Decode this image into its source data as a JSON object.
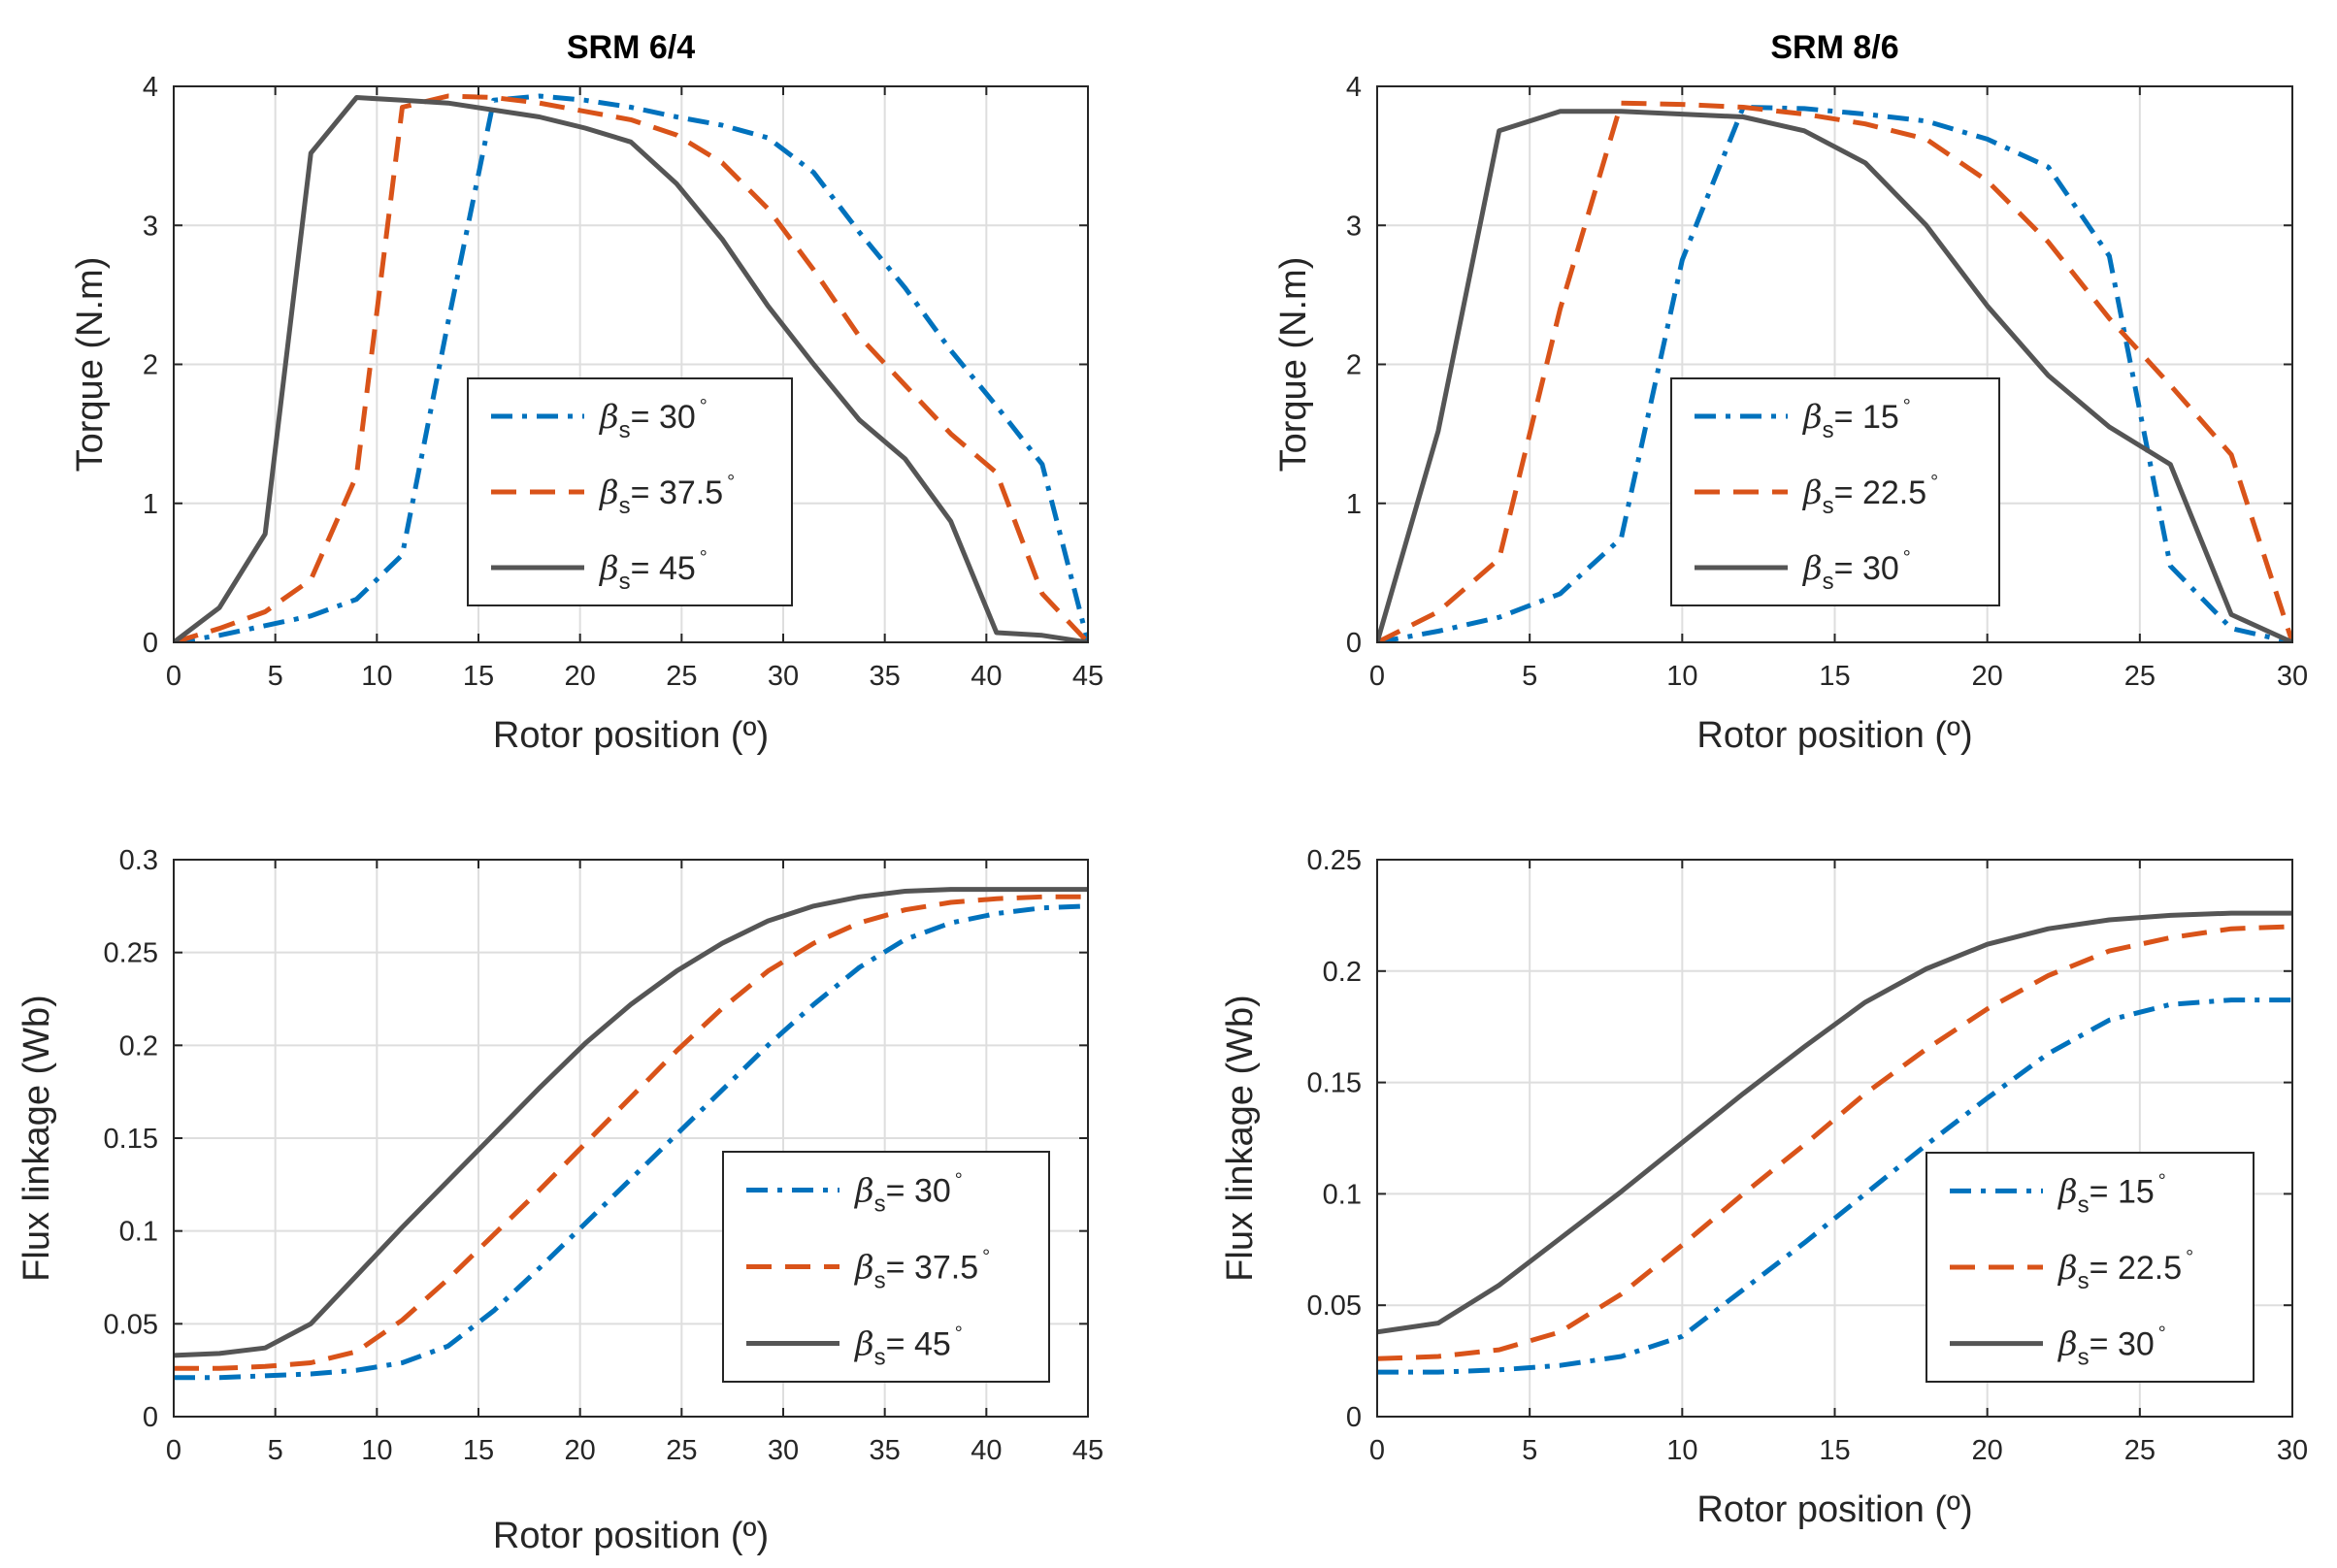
{
  "chart_data": [
    {
      "type": "line",
      "panel": "top-left",
      "title": "SRM 6/4",
      "xlabel": "Rotor position (º)",
      "ylabel": "Torque (N.m)",
      "xlim": [
        0,
        45
      ],
      "ylim": [
        0,
        4
      ],
      "xticks": [
        0,
        5,
        10,
        15,
        20,
        25,
        30,
        35,
        40,
        45
      ],
      "yticks": [
        0,
        1,
        2,
        3,
        4
      ],
      "grid": true,
      "legend_position": "center",
      "series": [
        {
          "name": "βs= 30°",
          "sym": "β",
          "sub": "s",
          "text": "= 30",
          "sup": "°",
          "color": "#0072BD",
          "style": "dashdot",
          "x": [
            0,
            2.25,
            4.5,
            6.75,
            9,
            11.25,
            13.5,
            15.75,
            18,
            20.25,
            22.5,
            24.75,
            27,
            29.25,
            31.5,
            33.75,
            36,
            38.25,
            40.5,
            42.75,
            45
          ],
          "y": [
            0,
            0.05,
            0.12,
            0.19,
            0.31,
            0.63,
            2.3,
            3.9,
            3.93,
            3.9,
            3.85,
            3.78,
            3.72,
            3.63,
            3.38,
            2.95,
            2.55,
            2.1,
            1.7,
            1.28,
            0
          ]
        },
        {
          "name": "βs= 37.5°",
          "sym": "β",
          "sub": "s",
          "text": "= 37.5",
          "sup": "°",
          "color": "#D95319",
          "style": "dashed",
          "x": [
            0,
            2.25,
            4.5,
            6.75,
            9,
            11.25,
            13.5,
            15.75,
            18,
            20.25,
            22.5,
            24.75,
            27,
            29.25,
            31.5,
            33.75,
            36,
            38.25,
            40.5,
            42.75,
            45
          ],
          "y": [
            0,
            0.1,
            0.22,
            0.45,
            1.2,
            3.85,
            3.93,
            3.92,
            3.88,
            3.82,
            3.76,
            3.65,
            3.45,
            3.12,
            2.68,
            2.2,
            1.85,
            1.5,
            1.22,
            0.35,
            0
          ]
        },
        {
          "name": "βs= 45°",
          "sym": "β",
          "sub": "s",
          "text": "= 45",
          "sup": "°",
          "color": "#555555",
          "style": "solid",
          "x": [
            0,
            2.25,
            4.5,
            6.75,
            9,
            11.25,
            13.5,
            15.75,
            18,
            20.25,
            22.5,
            24.75,
            27,
            29.25,
            31.5,
            33.75,
            36,
            38.25,
            40.5,
            42.75,
            45
          ],
          "y": [
            0,
            0.25,
            0.78,
            3.52,
            3.92,
            3.9,
            3.88,
            3.83,
            3.78,
            3.7,
            3.6,
            3.3,
            2.9,
            2.42,
            2.0,
            1.6,
            1.32,
            0.87,
            0.07,
            0.05,
            0
          ]
        }
      ]
    },
    {
      "type": "line",
      "panel": "top-right",
      "title": "SRM 8/6",
      "xlabel": "Rotor position (º)",
      "ylabel": "Torque (N.m)",
      "xlim": [
        0,
        30
      ],
      "ylim": [
        0,
        4
      ],
      "xticks": [
        0,
        5,
        10,
        15,
        20,
        25,
        30
      ],
      "yticks": [
        0,
        1,
        2,
        3,
        4
      ],
      "grid": true,
      "legend_position": "center",
      "series": [
        {
          "name": "βs= 15°",
          "sym": "β",
          "sub": "s",
          "text": "= 15",
          "sup": "°",
          "color": "#0072BD",
          "style": "dashdot",
          "x": [
            0,
            2,
            4,
            6,
            8,
            10,
            12,
            14,
            16,
            18,
            20,
            22,
            24,
            26,
            28,
            30
          ],
          "y": [
            0,
            0.08,
            0.18,
            0.35,
            0.75,
            2.75,
            3.85,
            3.84,
            3.8,
            3.75,
            3.62,
            3.42,
            2.78,
            0.55,
            0.1,
            0
          ]
        },
        {
          "name": "βs= 22.5°",
          "sym": "β",
          "sub": "s",
          "text": "= 22.5",
          "sup": "°",
          "color": "#D95319",
          "style": "dashed",
          "x": [
            0,
            2,
            4,
            6,
            8,
            10,
            12,
            14,
            16,
            18,
            20,
            22,
            24,
            26,
            28,
            30
          ],
          "y": [
            0,
            0.22,
            0.6,
            2.4,
            3.88,
            3.87,
            3.85,
            3.8,
            3.73,
            3.62,
            3.32,
            2.88,
            2.33,
            1.85,
            1.35,
            0
          ]
        },
        {
          "name": "βs= 30°",
          "sym": "β",
          "sub": "s",
          "text": "= 30",
          "sup": "°",
          "color": "#555555",
          "style": "solid",
          "x": [
            0,
            2,
            4,
            6,
            8,
            10,
            12,
            14,
            16,
            18,
            20,
            22,
            24,
            26,
            28,
            30
          ],
          "y": [
            0,
            1.52,
            3.68,
            3.82,
            3.82,
            3.8,
            3.78,
            3.68,
            3.45,
            3.0,
            2.42,
            1.92,
            1.55,
            1.28,
            0.2,
            0
          ]
        }
      ]
    },
    {
      "type": "line",
      "panel": "bottom-left",
      "title": "",
      "xlabel": "Rotor position (º)",
      "ylabel": "Flux linkage (Wb)",
      "xlim": [
        0,
        45
      ],
      "ylim": [
        0,
        0.3
      ],
      "xticks": [
        0,
        5,
        10,
        15,
        20,
        25,
        30,
        35,
        40,
        45
      ],
      "yticks": [
        0,
        0.05,
        0.1,
        0.15,
        0.2,
        0.25,
        0.3
      ],
      "ytick_labels": [
        "0",
        "0.05",
        "0.1",
        "0.15",
        "0.2",
        "0.25",
        "0.3"
      ],
      "grid": true,
      "legend_position": "bottom-right",
      "series": [
        {
          "name": "βs= 30°",
          "sym": "β",
          "sub": "s",
          "text": "= 30",
          "sup": "°",
          "color": "#0072BD",
          "style": "dashdot",
          "x": [
            0,
            2.25,
            4.5,
            6.75,
            9,
            11.25,
            13.5,
            15.75,
            18,
            20.25,
            22.5,
            24.75,
            27,
            29.25,
            31.5,
            33.75,
            36,
            38.25,
            40.5,
            42.75,
            45
          ],
          "y": [
            0.021,
            0.021,
            0.022,
            0.023,
            0.025,
            0.029,
            0.038,
            0.057,
            0.08,
            0.104,
            0.128,
            0.152,
            0.176,
            0.2,
            0.222,
            0.242,
            0.257,
            0.266,
            0.271,
            0.274,
            0.275
          ]
        },
        {
          "name": "βs= 37.5°",
          "sym": "β",
          "sub": "s",
          "text": "= 37.5",
          "sup": "°",
          "color": "#D95319",
          "style": "dashed",
          "x": [
            0,
            2.25,
            4.5,
            6.75,
            9,
            11.25,
            13.5,
            15.75,
            18,
            20.25,
            22.5,
            24.75,
            27,
            29.25,
            31.5,
            33.75,
            36,
            38.25,
            40.5,
            42.75,
            45
          ],
          "y": [
            0.026,
            0.026,
            0.027,
            0.029,
            0.035,
            0.052,
            0.074,
            0.098,
            0.122,
            0.147,
            0.172,
            0.197,
            0.22,
            0.24,
            0.255,
            0.266,
            0.273,
            0.277,
            0.279,
            0.28,
            0.28
          ]
        },
        {
          "name": "βs= 45°",
          "sym": "β",
          "sub": "s",
          "text": "= 45",
          "sup": "°",
          "color": "#555555",
          "style": "solid",
          "x": [
            0,
            2.25,
            4.5,
            6.75,
            9,
            11.25,
            13.5,
            15.75,
            18,
            20.25,
            22.5,
            24.75,
            27,
            29.25,
            31.5,
            33.75,
            36,
            38.25,
            40.5,
            42.75,
            45
          ],
          "y": [
            0.033,
            0.034,
            0.037,
            0.05,
            0.076,
            0.102,
            0.127,
            0.152,
            0.177,
            0.201,
            0.222,
            0.24,
            0.255,
            0.267,
            0.275,
            0.28,
            0.283,
            0.284,
            0.284,
            0.284,
            0.284
          ]
        }
      ]
    },
    {
      "type": "line",
      "panel": "bottom-right",
      "title": "",
      "xlabel": "Rotor position (º)",
      "ylabel": "Flux linkage (Wb)",
      "xlim": [
        0,
        30
      ],
      "ylim": [
        0,
        0.25
      ],
      "xticks": [
        0,
        5,
        10,
        15,
        20,
        25,
        30
      ],
      "yticks": [
        0,
        0.05,
        0.1,
        0.15,
        0.2,
        0.25
      ],
      "ytick_labels": [
        "0",
        "0.05",
        "0.1",
        "0.15",
        "0.2",
        "0.25"
      ],
      "grid": true,
      "legend_position": "bottom-right",
      "series": [
        {
          "name": "βs= 15°",
          "sym": "β",
          "sub": "s",
          "text": "= 15",
          "sup": "°",
          "color": "#0072BD",
          "style": "dashdot",
          "x": [
            0,
            2,
            4,
            6,
            8,
            10,
            12,
            14,
            16,
            18,
            20,
            22,
            24,
            26,
            28,
            30
          ],
          "y": [
            0.02,
            0.02,
            0.021,
            0.023,
            0.027,
            0.036,
            0.057,
            0.078,
            0.1,
            0.122,
            0.143,
            0.163,
            0.178,
            0.185,
            0.187,
            0.187
          ]
        },
        {
          "name": "βs= 22.5°",
          "sym": "β",
          "sub": "s",
          "text": "= 22.5",
          "sup": "°",
          "color": "#D95319",
          "style": "dashed",
          "x": [
            0,
            2,
            4,
            6,
            8,
            10,
            12,
            14,
            16,
            18,
            20,
            22,
            24,
            26,
            28,
            30
          ],
          "y": [
            0.026,
            0.027,
            0.03,
            0.038,
            0.055,
            0.077,
            0.1,
            0.122,
            0.145,
            0.165,
            0.183,
            0.198,
            0.209,
            0.215,
            0.219,
            0.22
          ]
        },
        {
          "name": "βs= 30°",
          "sym": "β",
          "sub": "s",
          "text": "= 30",
          "sup": "°",
          "color": "#555555",
          "style": "solid",
          "x": [
            0,
            2,
            4,
            6,
            8,
            10,
            12,
            14,
            16,
            18,
            20,
            22,
            24,
            26,
            28,
            30
          ],
          "y": [
            0.038,
            0.042,
            0.059,
            0.08,
            0.101,
            0.123,
            0.145,
            0.166,
            0.186,
            0.201,
            0.212,
            0.219,
            0.223,
            0.225,
            0.226,
            0.226
          ]
        }
      ]
    }
  ]
}
